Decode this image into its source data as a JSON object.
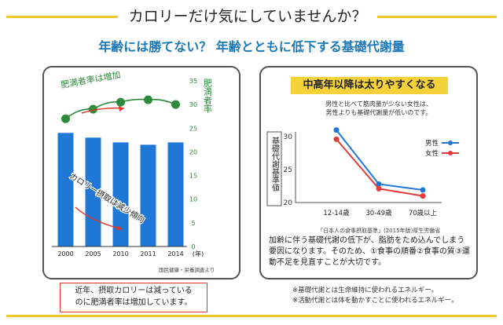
{
  "headline": "カロリーだけ気にしていませんか？",
  "subtitle": "年齢には勝てない？ 年齢とともに低下する基礎代謝量",
  "left_note": [
    "近年、摂取カロリーは減っている",
    "のに肥満者率は増加しています。"
  ],
  "left_source": "国民健康・栄養調査より",
  "right_badge": "中高年以降は太りやすくなる",
  "right_desc": [
    "男性と比べて筋肉量が少ない女性は、",
    "男性よりも基礎代謝量が低いのです。"
  ],
  "right_source": "「日本人の食事摂取基準」(2015年版)厚生労働省",
  "right_body": "加齢に伴う基礎代謝の低下が、脂肪をため込んでしまう要因になります。そのため、①食事の順番②食事の質③運動不足を見直すことが大切です。",
  "footnotes": [
    "※基礎代謝とは生命維持に使われるエネルギー。",
    "※活動代謝とは体を動かすことに使われるエネルギー。"
  ],
  "colors": {
    "bar": "#1f78d6",
    "obesity": "#2d8a3a",
    "male": "#1f78d6",
    "female": "#e23a3a",
    "accent": "#f3c531",
    "arrow": "#e03a2d"
  },
  "chart_data": [
    {
      "type": "bar",
      "categories": [
        "2000",
        "2005",
        "2010",
        "2011",
        "2014"
      ],
      "x_unit": "(年)",
      "series": [
        {
          "name": "カロリー摂取は減少傾向",
          "type": "bar",
          "values": [
            24,
            23,
            22,
            21.5,
            22
          ]
        },
        {
          "name": "肥満者率は増加",
          "type": "line",
          "values": [
            27,
            29,
            30.5,
            31,
            30
          ]
        }
      ],
      "right_axis_label": "肥満者率",
      "right_ticks": [
        "35",
        "30",
        "25",
        "20",
        "15",
        "10",
        "5",
        "0"
      ],
      "ylim": [
        0,
        35
      ]
    },
    {
      "type": "line",
      "categories": [
        "12-14歳",
        "30-49歳",
        "70歳以上"
      ],
      "ylabel": "基礎代謝基準値",
      "y_ticks": [
        "30",
        "25",
        "20"
      ],
      "ylim": [
        20,
        30
      ],
      "series": [
        {
          "name": "男性",
          "values": [
            31,
            22.8,
            21.9
          ]
        },
        {
          "name": "女性",
          "values": [
            29.6,
            22.1,
            21
          ]
        }
      ]
    }
  ]
}
